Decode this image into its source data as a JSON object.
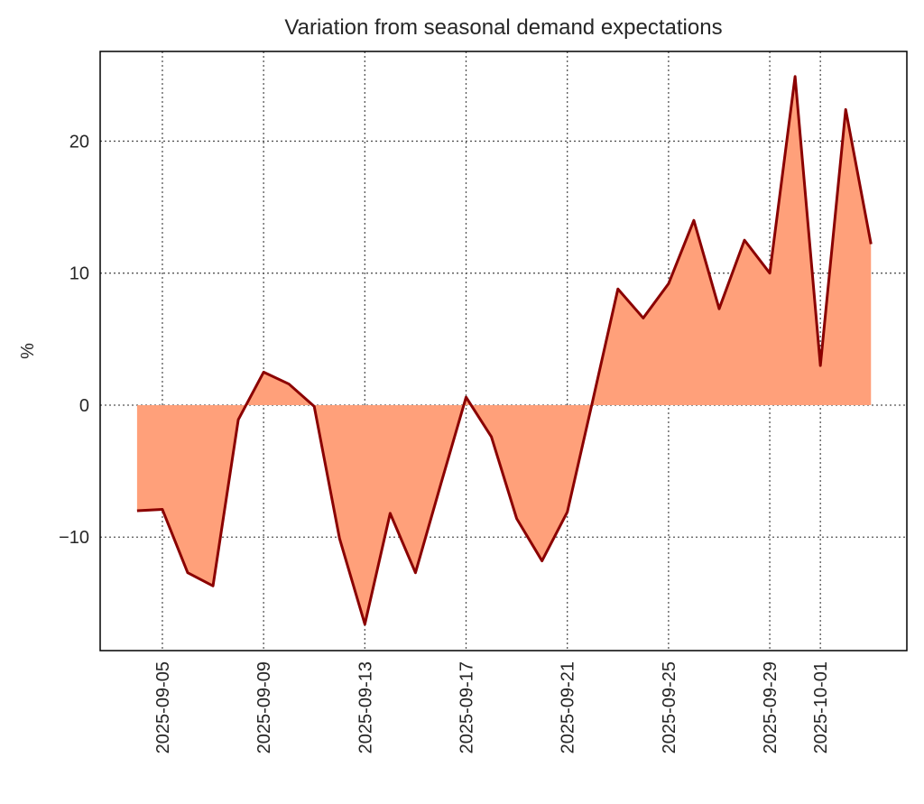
{
  "chart_data": {
    "type": "area",
    "title": "Variation from seasonal demand expectations",
    "xlabel": "",
    "ylabel": "%",
    "x": [
      "2025-09-04",
      "2025-09-05",
      "2025-09-06",
      "2025-09-07",
      "2025-09-08",
      "2025-09-09",
      "2025-09-10",
      "2025-09-11",
      "2025-09-12",
      "2025-09-13",
      "2025-09-14",
      "2025-09-15",
      "2025-09-16",
      "2025-09-17",
      "2025-09-18",
      "2025-09-19",
      "2025-09-20",
      "2025-09-21",
      "2025-09-22",
      "2025-09-23",
      "2025-09-24",
      "2025-09-25",
      "2025-09-26",
      "2025-09-27",
      "2025-09-28",
      "2025-09-29",
      "2025-09-30",
      "2025-10-01",
      "2025-10-02",
      "2025-10-03"
    ],
    "values": [
      -8.0,
      -7.9,
      -12.7,
      -13.7,
      -1.1,
      2.5,
      1.6,
      -0.1,
      -10.1,
      -16.6,
      -8.2,
      -12.7,
      -6.0,
      0.6,
      -2.4,
      -8.6,
      -11.8,
      -8.1,
      0.3,
      8.8,
      6.6,
      9.2,
      14.0,
      7.3,
      12.5,
      10.0,
      24.9,
      3.0,
      22.4,
      12.2
    ],
    "xticks": [
      "2025-09-05",
      "2025-09-09",
      "2025-09-13",
      "2025-09-17",
      "2025-09-21",
      "2025-09-25",
      "2025-09-29",
      "2025-10-01"
    ],
    "yticks": [
      -10,
      0,
      10,
      20
    ],
    "ylim": [
      -18.6,
      26.8
    ],
    "xlim": [
      "2025-09-02T13:00",
      "2025-10-04T10:00"
    ],
    "grid": true,
    "colors": {
      "line": "#8b0000",
      "fill": "#ffa07a",
      "grid": "#555555"
    }
  }
}
